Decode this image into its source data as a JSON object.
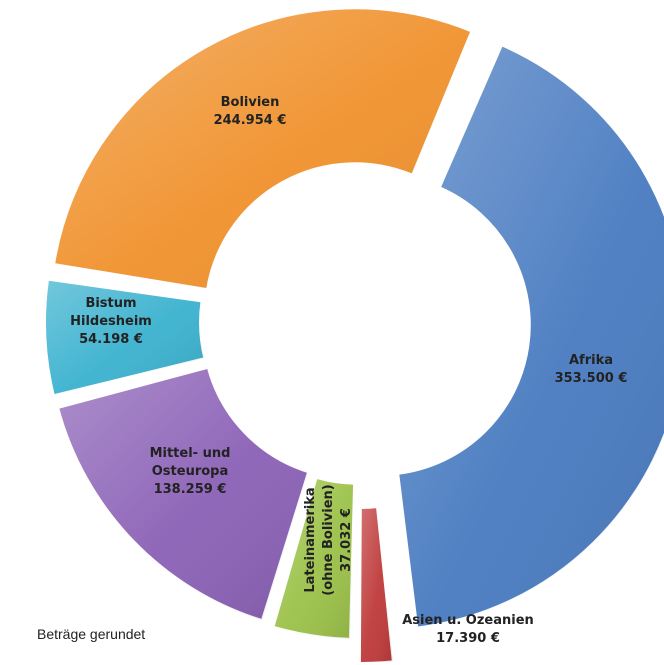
{
  "chart_data": {
    "type": "pie",
    "variant": "donut",
    "slices": [
      {
        "key": "afrika",
        "label_lines": [
          "Afrika",
          "353.500 €"
        ],
        "value": 353500,
        "color": "#4a7cc1"
      },
      {
        "key": "asien",
        "label_lines": [
          "Asien u. Ozeanien",
          "17.390 €"
        ],
        "value": 17390,
        "color": "#bf3b3b"
      },
      {
        "key": "latein",
        "label_lines": [
          "Lateinamerika",
          "(ohne Bolivien)",
          "37.032 €"
        ],
        "value": 37032,
        "color": "#9cc24a"
      },
      {
        "key": "mittel",
        "label_lines": [
          "Mittel- und",
          "Osteuropa",
          "138.259 €"
        ],
        "value": 138259,
        "color": "#8c62b7"
      },
      {
        "key": "bistum",
        "label_lines": [
          "Bistum",
          "Hildesheim",
          "54.198  €"
        ],
        "value": 54198,
        "color": "#3cb2cf"
      },
      {
        "key": "bolivien",
        "label_lines": [
          "Bolivien",
          "244.954 €"
        ],
        "value": 244954,
        "color": "#f0922e"
      }
    ]
  },
  "footnote": "Beträge gerundet"
}
